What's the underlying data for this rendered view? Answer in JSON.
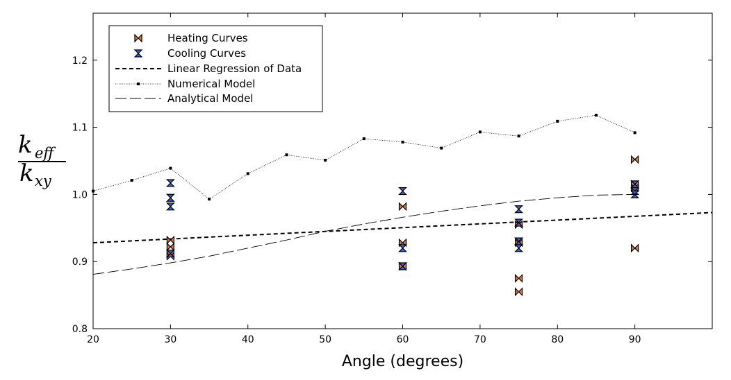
{
  "chart_data": {
    "type": "scatter",
    "xlabel": "Angle (degrees)",
    "ylabel": {
      "numerator": "k",
      "numerator_sub": "eff",
      "denominator": "k",
      "denominator_sub": "xy"
    },
    "xlim": [
      20,
      100
    ],
    "ylim": [
      0.8,
      1.27
    ],
    "xticks": [
      20,
      30,
      40,
      50,
      60,
      70,
      80,
      90
    ],
    "yticks": [
      0.8,
      0.9,
      1.0,
      1.1,
      1.2
    ],
    "xtick_labels": [
      "20",
      "30",
      "40",
      "50",
      "60",
      "70",
      "80",
      "90"
    ],
    "ytick_labels": [
      "0.8",
      "0.9",
      "1.0",
      "1.1",
      "1.2"
    ],
    "grid": false,
    "legend_position": "top-left",
    "colors": {
      "heating": "#e8782a",
      "cooling": "#3a63d8",
      "stroke": "#000000"
    },
    "series": [
      {
        "name": "Heating Curves",
        "kind": "markers",
        "marker": "bowtie",
        "points": [
          [
            30,
            0.932
          ],
          [
            30,
            0.922
          ],
          [
            30,
            0.912
          ],
          [
            30,
            0.908
          ],
          [
            60,
            0.982
          ],
          [
            60,
            0.928
          ],
          [
            60,
            0.893
          ],
          [
            75,
            0.955
          ],
          [
            75,
            0.928
          ],
          [
            75,
            0.875
          ],
          [
            75,
            0.855
          ],
          [
            90,
            1.052
          ],
          [
            90,
            1.015
          ],
          [
            90,
            1.01
          ],
          [
            90,
            0.92
          ]
        ]
      },
      {
        "name": "Cooling Curves",
        "kind": "markers",
        "marker": "hourglass",
        "points": [
          [
            30,
            1.017
          ],
          [
            30,
            0.995
          ],
          [
            30,
            0.982
          ],
          [
            30,
            0.912
          ],
          [
            60,
            1.005
          ],
          [
            60,
            0.92
          ],
          [
            60,
            0.893
          ],
          [
            75,
            0.978
          ],
          [
            75,
            0.958
          ],
          [
            75,
            0.93
          ],
          [
            75,
            0.92
          ],
          [
            90,
            1.015
          ],
          [
            90,
            1.005
          ],
          [
            90,
            1.0
          ]
        ]
      },
      {
        "name": "Linear Regression of Data",
        "kind": "line",
        "style": "dashed",
        "points": [
          [
            20,
            0.928
          ],
          [
            100,
            0.973
          ]
        ]
      },
      {
        "name": "Numerical Model",
        "kind": "line",
        "style": "dotted-markers",
        "points": [
          [
            20,
            1.005
          ],
          [
            25,
            1.021
          ],
          [
            30,
            1.039
          ],
          [
            35,
            0.993
          ],
          [
            40,
            1.031
          ],
          [
            45,
            1.059
          ],
          [
            50,
            1.051
          ],
          [
            55,
            1.083
          ],
          [
            60,
            1.078
          ],
          [
            65,
            1.069
          ],
          [
            70,
            1.093
          ],
          [
            75,
            1.087
          ],
          [
            80,
            1.109
          ],
          [
            85,
            1.118
          ],
          [
            90,
            1.092
          ]
        ]
      },
      {
        "name": "Analytical Model",
        "kind": "line",
        "style": "long-dash",
        "points": [
          [
            20,
            0.881
          ],
          [
            25,
            0.889
          ],
          [
            30,
            0.898
          ],
          [
            35,
            0.908
          ],
          [
            40,
            0.92
          ],
          [
            45,
            0.932
          ],
          [
            50,
            0.945
          ],
          [
            55,
            0.956
          ],
          [
            60,
            0.966
          ],
          [
            65,
            0.975
          ],
          [
            70,
            0.983
          ],
          [
            75,
            0.99
          ],
          [
            80,
            0.995
          ],
          [
            85,
            0.999
          ],
          [
            90,
            1.0
          ]
        ]
      }
    ]
  }
}
